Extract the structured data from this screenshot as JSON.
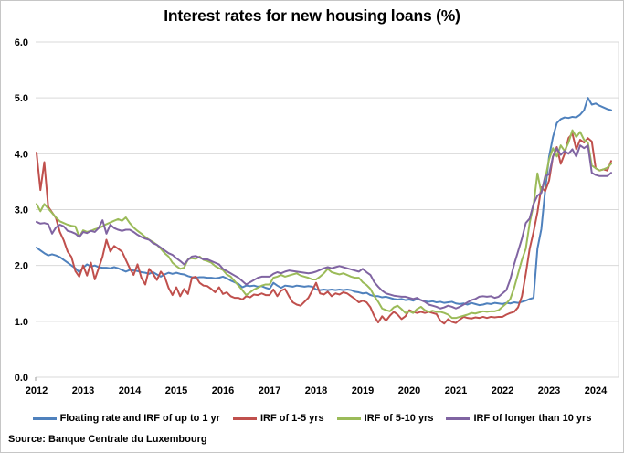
{
  "title": "Interest rates for new housing loans (%)",
  "source": "Source: Banque Centrale du Luxembourg",
  "chart_data": {
    "type": "line",
    "title": "Interest rates for new housing loans (%)",
    "x_start": "2012-01",
    "x_end": "2024-05",
    "x_frequency": "monthly",
    "xticks": [
      "2012",
      "2013",
      "2014",
      "2015",
      "2016",
      "2017",
      "2018",
      "2019",
      "2020",
      "2021",
      "2022",
      "2023",
      "2024"
    ],
    "yticks": [
      "0.0",
      "1.0",
      "2.0",
      "3.0",
      "4.0",
      "5.0",
      "6.0"
    ],
    "ylim": [
      0,
      6
    ],
    "grid": "horizontal",
    "legend_position": "bottom",
    "background": "#ffffff",
    "gridline_color": "#d9d9d9",
    "series": [
      {
        "name": "Floating rate and IRF of up to 1 yr",
        "color": "#4F81BD",
        "values": [
          2.32,
          2.27,
          2.22,
          2.18,
          2.2,
          2.18,
          2.15,
          2.1,
          2.05,
          2.0,
          1.95,
          1.88,
          1.96,
          2.02,
          1.98,
          2.0,
          1.97,
          1.96,
          1.96,
          1.95,
          1.97,
          1.95,
          1.92,
          1.89,
          1.92,
          1.91,
          1.9,
          1.88,
          1.87,
          1.85,
          1.88,
          1.84,
          1.8,
          1.84,
          1.87,
          1.85,
          1.87,
          1.85,
          1.84,
          1.81,
          1.79,
          1.78,
          1.79,
          1.79,
          1.78,
          1.78,
          1.77,
          1.78,
          1.8,
          1.77,
          1.73,
          1.7,
          1.67,
          1.61,
          1.64,
          1.63,
          1.64,
          1.62,
          1.63,
          1.6,
          1.58,
          1.69,
          1.64,
          1.6,
          1.64,
          1.63,
          1.62,
          1.64,
          1.63,
          1.62,
          1.63,
          1.62,
          1.57,
          1.56,
          1.57,
          1.56,
          1.57,
          1.56,
          1.57,
          1.56,
          1.57,
          1.56,
          1.53,
          1.52,
          1.5,
          1.51,
          1.47,
          1.45,
          1.45,
          1.43,
          1.44,
          1.42,
          1.4,
          1.39,
          1.4,
          1.38,
          1.39,
          1.37,
          1.4,
          1.38,
          1.36,
          1.35,
          1.36,
          1.34,
          1.35,
          1.33,
          1.34,
          1.35,
          1.32,
          1.31,
          1.32,
          1.3,
          1.33,
          1.31,
          1.29,
          1.3,
          1.32,
          1.31,
          1.33,
          1.32,
          1.31,
          1.33,
          1.32,
          1.34,
          1.33,
          1.35,
          1.37,
          1.4,
          1.42,
          2.3,
          2.65,
          3.35,
          3.95,
          4.3,
          4.55,
          4.62,
          4.65,
          4.64,
          4.66,
          4.65,
          4.7,
          4.78,
          5.0,
          4.88,
          4.9,
          4.86,
          4.83,
          4.8,
          4.78
        ]
      },
      {
        "name": "IRF of 1-5 yrs",
        "color": "#C0504D",
        "values": [
          4.02,
          3.35,
          3.85,
          3.05,
          2.95,
          2.85,
          2.6,
          2.45,
          2.25,
          2.15,
          1.9,
          1.8,
          2.0,
          1.82,
          2.05,
          1.75,
          1.95,
          2.16,
          2.46,
          2.25,
          2.35,
          2.3,
          2.25,
          2.1,
          1.95,
          1.83,
          2.02,
          1.78,
          1.66,
          1.94,
          1.85,
          1.74,
          1.89,
          1.8,
          1.6,
          1.47,
          1.61,
          1.45,
          1.58,
          1.49,
          1.78,
          1.8,
          1.69,
          1.64,
          1.63,
          1.58,
          1.52,
          1.61,
          1.49,
          1.52,
          1.45,
          1.42,
          1.42,
          1.39,
          1.45,
          1.43,
          1.48,
          1.47,
          1.5,
          1.47,
          1.47,
          1.57,
          1.45,
          1.55,
          1.58,
          1.45,
          1.34,
          1.3,
          1.28,
          1.35,
          1.42,
          1.55,
          1.69,
          1.5,
          1.48,
          1.53,
          1.45,
          1.5,
          1.48,
          1.52,
          1.5,
          1.45,
          1.4,
          1.34,
          1.37,
          1.34,
          1.25,
          1.09,
          0.98,
          1.09,
          1.01,
          1.1,
          1.17,
          1.12,
          1.04,
          1.09,
          1.2,
          1.17,
          1.15,
          1.17,
          1.15,
          1.17,
          1.15,
          1.13,
          1.01,
          0.96,
          1.04,
          0.99,
          0.97,
          1.03,
          1.08,
          1.06,
          1.05,
          1.07,
          1.06,
          1.08,
          1.06,
          1.08,
          1.07,
          1.08,
          1.08,
          1.12,
          1.15,
          1.17,
          1.25,
          1.45,
          1.85,
          2.3,
          2.6,
          2.95,
          3.4,
          3.33,
          3.52,
          3.95,
          4.12,
          3.82,
          4.0,
          4.28,
          4.36,
          4.08,
          4.25,
          4.2,
          4.28,
          4.22,
          3.74,
          3.7,
          3.72,
          3.7,
          3.87
        ]
      },
      {
        "name": "IRF of 5-10 yrs",
        "color": "#9BBB59",
        "values": [
          3.1,
          2.97,
          3.1,
          3.02,
          2.94,
          2.86,
          2.79,
          2.76,
          2.73,
          2.71,
          2.7,
          2.51,
          2.63,
          2.6,
          2.62,
          2.65,
          2.67,
          2.7,
          2.74,
          2.77,
          2.8,
          2.83,
          2.8,
          2.86,
          2.76,
          2.68,
          2.62,
          2.57,
          2.51,
          2.46,
          2.42,
          2.37,
          2.3,
          2.22,
          2.16,
          2.05,
          1.99,
          1.94,
          1.96,
          2.11,
          2.13,
          2.12,
          2.16,
          2.1,
          2.08,
          2.05,
          1.99,
          1.95,
          1.92,
          1.84,
          1.8,
          1.72,
          1.64,
          1.56,
          1.47,
          1.52,
          1.57,
          1.6,
          1.64,
          1.66,
          1.66,
          1.78,
          1.8,
          1.83,
          1.8,
          1.82,
          1.84,
          1.86,
          1.82,
          1.8,
          1.78,
          1.75,
          1.75,
          1.8,
          1.86,
          1.94,
          1.88,
          1.86,
          1.84,
          1.86,
          1.83,
          1.8,
          1.78,
          1.78,
          1.7,
          1.65,
          1.58,
          1.45,
          1.35,
          1.23,
          1.2,
          1.18,
          1.25,
          1.28,
          1.22,
          1.15,
          1.18,
          1.15,
          1.22,
          1.26,
          1.2,
          1.17,
          1.19,
          1.17,
          1.17,
          1.15,
          1.12,
          1.06,
          1.06,
          1.08,
          1.1,
          1.12,
          1.15,
          1.14,
          1.16,
          1.18,
          1.17,
          1.18,
          1.18,
          1.2,
          1.26,
          1.32,
          1.4,
          1.6,
          1.85,
          2.1,
          2.3,
          2.76,
          3.08,
          3.65,
          3.3,
          3.55,
          3.9,
          4.1,
          3.95,
          4.15,
          4.05,
          4.2,
          4.42,
          4.3,
          4.39,
          4.25,
          4.2,
          3.79,
          3.74,
          3.7,
          3.72,
          3.75,
          3.82
        ]
      },
      {
        "name": "IRF of longer than 10 yrs",
        "color": "#8064A2",
        "values": [
          2.78,
          2.75,
          2.76,
          2.74,
          2.57,
          2.68,
          2.73,
          2.7,
          2.62,
          2.6,
          2.57,
          2.51,
          2.6,
          2.58,
          2.62,
          2.6,
          2.67,
          2.81,
          2.57,
          2.73,
          2.67,
          2.64,
          2.62,
          2.64,
          2.64,
          2.6,
          2.55,
          2.51,
          2.48,
          2.46,
          2.4,
          2.37,
          2.32,
          2.27,
          2.22,
          2.19,
          2.13,
          2.08,
          2.02,
          2.1,
          2.16,
          2.17,
          2.14,
          2.11,
          2.11,
          2.08,
          2.05,
          2.02,
          1.94,
          1.9,
          1.86,
          1.82,
          1.78,
          1.72,
          1.66,
          1.7,
          1.74,
          1.78,
          1.8,
          1.8,
          1.8,
          1.85,
          1.88,
          1.86,
          1.89,
          1.91,
          1.9,
          1.89,
          1.88,
          1.87,
          1.86,
          1.87,
          1.89,
          1.92,
          1.95,
          1.97,
          1.95,
          1.97,
          1.99,
          1.97,
          1.95,
          1.93,
          1.91,
          1.89,
          1.94,
          1.88,
          1.83,
          1.7,
          1.62,
          1.55,
          1.5,
          1.48,
          1.46,
          1.45,
          1.44,
          1.44,
          1.42,
          1.4,
          1.42,
          1.38,
          1.35,
          1.3,
          1.28,
          1.26,
          1.23,
          1.25,
          1.28,
          1.26,
          1.23,
          1.26,
          1.3,
          1.34,
          1.38,
          1.4,
          1.44,
          1.45,
          1.44,
          1.45,
          1.42,
          1.44,
          1.5,
          1.56,
          1.75,
          2.02,
          2.25,
          2.48,
          2.76,
          2.84,
          3.1,
          3.25,
          3.3,
          3.6,
          3.63,
          3.95,
          4.1,
          3.98,
          4.05,
          4.0,
          4.08,
          3.95,
          4.15,
          4.1,
          4.15,
          3.66,
          3.62,
          3.6,
          3.6,
          3.6,
          3.66
        ]
      }
    ]
  }
}
